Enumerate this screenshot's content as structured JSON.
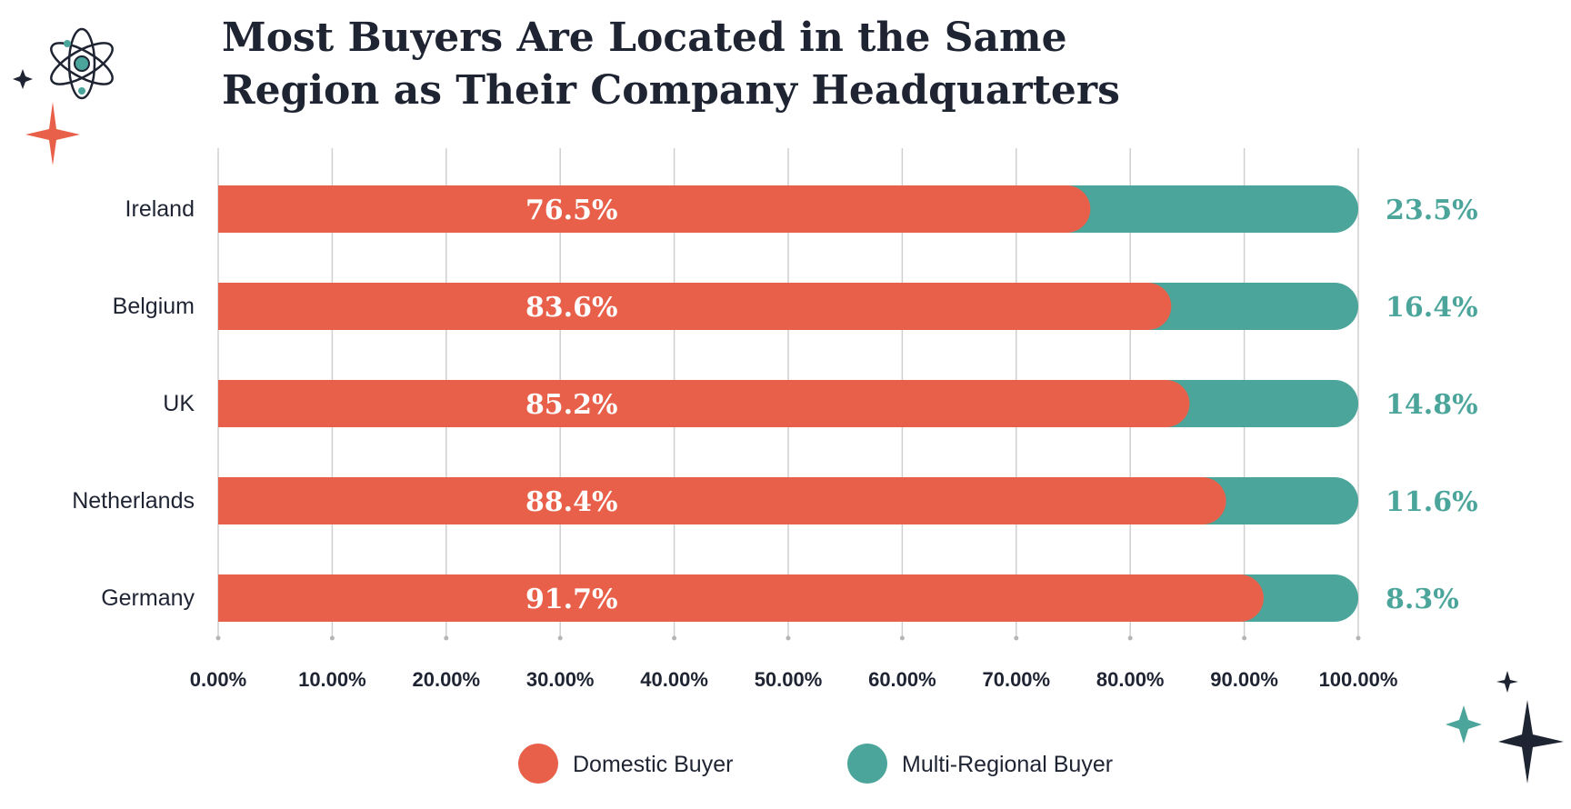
{
  "chart_data": {
    "type": "bar",
    "orientation": "horizontal",
    "stacked": true,
    "title_lines": [
      "Most Buyers Are Located in the Same",
      "Region as Their Company Headquarters"
    ],
    "categories": [
      "Ireland",
      "Belgium",
      "UK",
      "Netherlands",
      "Germany"
    ],
    "series": [
      {
        "name": "Domestic Buyer",
        "values": [
          76.5,
          83.6,
          85.2,
          88.4,
          91.7
        ],
        "labels": [
          "76.5%",
          "83.6%",
          "85.2%",
          "88.4%",
          "91.7%"
        ],
        "color": "#e8604a"
      },
      {
        "name": "Multi-Regional Buyer",
        "values": [
          23.5,
          16.4,
          14.8,
          11.6,
          8.3
        ],
        "labels": [
          "23.5%",
          "16.4%",
          "14.8%",
          "11.6%",
          "8.3%"
        ],
        "color": "#4ba59b"
      }
    ],
    "xlim": [
      0,
      100
    ],
    "x_ticks": [
      0,
      10,
      20,
      30,
      40,
      50,
      60,
      70,
      80,
      90,
      100
    ],
    "x_tick_labels": [
      "0.00%",
      "10.00%",
      "20.00%",
      "30.00%",
      "40.00%",
      "50.00%",
      "60.00%",
      "70.00%",
      "80.00%",
      "90.00%",
      "100.00%"
    ],
    "grid": true,
    "legend_position": "bottom-center"
  },
  "colors": {
    "title": "#1f2433",
    "grid": "#cfcfcf",
    "dark_accent": "#1f2433"
  },
  "decorations": [
    "atom-icon",
    "sparkle-icon"
  ]
}
